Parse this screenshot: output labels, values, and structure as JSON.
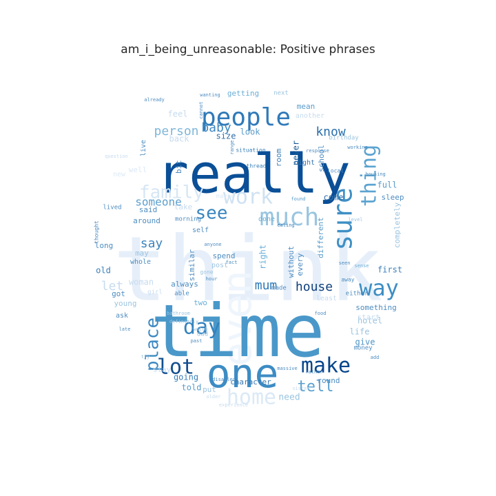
{
  "title": "am_i_being_unreasonable: Positive phrases",
  "colormap": [
    "#eef5fc",
    "#dbe9f6",
    "#c6dbef",
    "#9ecae1",
    "#6aaed6",
    "#4292c6",
    "#2171b5",
    "#08519c",
    "#08306b"
  ],
  "words": [
    {
      "text": "think",
      "shade": "#e6eff9"
    },
    {
      "text": "even",
      "shade": "#eef5fc"
    },
    {
      "text": "time",
      "shade": "#4a98c9"
    },
    {
      "text": "really",
      "shade": "#0a4f97"
    },
    {
      "text": "one",
      "shade": "#3d8cc4"
    },
    {
      "text": "people",
      "shade": "#2f7ab9"
    },
    {
      "text": "much",
      "shade": "#9ac5e0"
    },
    {
      "text": "work",
      "shade": "#cfe1f2"
    },
    {
      "text": "family",
      "shade": "#d6e6f4"
    },
    {
      "text": "see",
      "shade": "#3a86c0"
    },
    {
      "text": "sure",
      "shade": "#3f8fc5"
    },
    {
      "text": "thing",
      "shade": "#5ba3d0"
    },
    {
      "text": "way",
      "shade": "#3e8ec4"
    },
    {
      "text": "make",
      "shade": "#08468b"
    },
    {
      "text": "lot",
      "shade": "#124f8e"
    },
    {
      "text": "day",
      "shade": "#3282be"
    },
    {
      "text": "home",
      "shade": "#dbe9f6"
    },
    {
      "text": "place",
      "shade": "#3d89c2"
    },
    {
      "text": "tell",
      "shade": "#5aa1cf"
    },
    {
      "text": "house",
      "shade": "#0e3f7c"
    },
    {
      "text": "mum",
      "shade": "#2f79b5"
    },
    {
      "text": "know",
      "shade": "#2a6fac"
    },
    {
      "text": "person",
      "shade": "#7fb6d9"
    },
    {
      "text": "baby",
      "shade": "#3d87c0"
    },
    {
      "text": "someone",
      "shade": "#5c9fcd"
    },
    {
      "text": "say",
      "shade": "#3b84be"
    },
    {
      "text": "let",
      "shade": "#c6dbef"
    },
    {
      "text": "need",
      "shade": "#9ac5e0"
    },
    {
      "text": "going",
      "shade": "#3a7fb8"
    },
    {
      "text": "told",
      "shade": "#5a9bc9"
    },
    {
      "text": "character",
      "shade": "#3a77b0"
    },
    {
      "text": "round",
      "shade": "#4f8cc1"
    },
    {
      "text": "give",
      "shade": "#4d92c5"
    },
    {
      "text": "life",
      "shade": "#9cc4e0"
    },
    {
      "text": "hotel",
      "shade": "#9cc4e0"
    },
    {
      "text": "start",
      "shade": "#c6dbef"
    },
    {
      "text": "something",
      "shade": "#4d8cc1"
    },
    {
      "text": "least",
      "shade": "#c6dbef"
    },
    {
      "text": "first",
      "shade": "#3a7fb8"
    },
    {
      "text": "every",
      "shade": "#4d8cc1"
    },
    {
      "text": "without",
      "shade": "#4d8cc1"
    },
    {
      "text": "right",
      "shade": "#6aaed6"
    },
    {
      "text": "different",
      "shade": "#5a9bc9"
    },
    {
      "text": "come",
      "shade": "#2f6ea9"
    },
    {
      "text": "full",
      "shade": "#5a9bc9"
    },
    {
      "text": "sleep",
      "shade": "#4d8cc1"
    },
    {
      "text": "completely",
      "shade": "#9cc4e0"
    },
    {
      "text": "never",
      "shade": "#1d5c98"
    },
    {
      "text": "school",
      "shade": "#4d8cc1"
    },
    {
      "text": "room",
      "shade": "#3a7fb8"
    },
    {
      "text": "night",
      "shade": "#3a77b0"
    },
    {
      "text": "size",
      "shade": "#2f6ea9"
    },
    {
      "text": "look",
      "shade": "#5a9bc9"
    },
    {
      "text": "back",
      "shade": "#c6dbef"
    },
    {
      "text": "feel",
      "shade": "#c6dbef"
    },
    {
      "text": "getting",
      "shade": "#6aaed6"
    },
    {
      "text": "mean",
      "shade": "#5a9bc9"
    },
    {
      "text": "another",
      "shade": "#c6dbef"
    },
    {
      "text": "next",
      "shade": "#9cc4e0"
    },
    {
      "text": "birthday",
      "shade": "#9cc4e0"
    },
    {
      "text": "live",
      "shade": "#4d8cc1"
    },
    {
      "text": "bit",
      "shade": "#4d8cc1"
    },
    {
      "text": "well",
      "shade": "#dbe9f6"
    },
    {
      "text": "new",
      "shade": "#dbe9f6"
    },
    {
      "text": "said",
      "shade": "#4d8cc1"
    },
    {
      "text": "around",
      "shade": "#4d8cc1"
    },
    {
      "text": "take",
      "shade": "#c6dbef"
    },
    {
      "text": "morning",
      "shade": "#4d8cc1"
    },
    {
      "text": "done",
      "shade": "#6aaed6"
    },
    {
      "text": "self",
      "shade": "#4d8cc1"
    },
    {
      "text": "maybe",
      "shade": "#dbe9f6"
    },
    {
      "text": "long",
      "shade": "#4d8cc1"
    },
    {
      "text": "old",
      "shade": "#3a7fb8"
    },
    {
      "text": "woman",
      "shade": "#c6dbef"
    },
    {
      "text": "always",
      "shade": "#4d8cc1"
    },
    {
      "text": "similar",
      "shade": "#4d8cc1"
    },
    {
      "text": "spend",
      "shade": "#4d8cc1"
    },
    {
      "text": "post",
      "shade": "#9cc4e0"
    },
    {
      "text": "whole",
      "shade": "#4d8cc1"
    },
    {
      "text": "may",
      "shade": "#9cc4e0"
    },
    {
      "text": "got",
      "shade": "#4d8cc1"
    },
    {
      "text": "young",
      "shade": "#9cc4e0"
    },
    {
      "text": "two",
      "shade": "#6aaed6"
    },
    {
      "text": "able",
      "shade": "#4d8cc1"
    },
    {
      "text": "ask",
      "shade": "#4d8cc1"
    },
    {
      "text": "stay",
      "shade": "#c6dbef"
    },
    {
      "text": "put",
      "shade": "#9cc4e0"
    },
    {
      "text": "dad",
      "shade": "#9cc4e0"
    },
    {
      "text": "lived",
      "shade": "#4d8cc1"
    },
    {
      "text": "made",
      "shade": "#4d8cc1"
    },
    {
      "text": "either",
      "shade": "#4d8cc1"
    },
    {
      "text": "away",
      "shade": "#4d8cc1"
    },
    {
      "text": "money",
      "shade": "#4d8cc1"
    },
    {
      "text": "girl",
      "shade": "#c6dbef"
    },
    {
      "text": "situation",
      "shade": "#3a7fb8"
    },
    {
      "text": "thread",
      "shade": "#3a7fb8"
    },
    {
      "text": "found",
      "shade": "#5a9bc9"
    },
    {
      "text": "thought",
      "shade": "#4d8cc1"
    },
    {
      "text": "question",
      "shade": "#c6dbef"
    },
    {
      "text": "housing",
      "shade": "#4d8cc1"
    },
    {
      "text": "working",
      "shade": "#4d8cc1"
    },
    {
      "text": "eating",
      "shade": "#3a7fb8"
    },
    {
      "text": "already",
      "shade": "#4d8cc1"
    },
    {
      "text": "seen",
      "shade": "#4d8cc1"
    },
    {
      "text": "sense",
      "shade": "#6aaed6"
    },
    {
      "text": "response",
      "shade": "#4d8cc1"
    },
    {
      "text": "local",
      "shade": "#4d8cc1"
    },
    {
      "text": "level",
      "shade": "#9cc4e0"
    },
    {
      "text": "range",
      "shade": "#4d8cc1"
    },
    {
      "text": "anyone",
      "shade": "#4d8cc1"
    },
    {
      "text": "bathroom",
      "shade": "#9cc4e0"
    },
    {
      "text": "definitely",
      "shade": "#9cc4e0"
    },
    {
      "text": "watch",
      "shade": "#9cc4e0"
    },
    {
      "text": "past",
      "shade": "#4d8cc1"
    },
    {
      "text": "disabled",
      "shade": "#4d8cc1"
    },
    {
      "text": "massive",
      "shade": "#4d8cc1"
    },
    {
      "text": "rather",
      "shade": "#4d8cc1"
    },
    {
      "text": "food",
      "shade": "#4d8cc1"
    },
    {
      "text": "hour",
      "shade": "#4d8cc1"
    },
    {
      "text": "fact",
      "shade": "#4d8cc1"
    },
    {
      "text": "wanting",
      "shade": "#4d8cc1"
    },
    {
      "text": "cannot",
      "shade": "#4d8cc1"
    },
    {
      "text": "experience",
      "shade": "#c6dbef"
    },
    {
      "text": "older",
      "shade": "#c6dbef"
    },
    {
      "text": "add",
      "shade": "#4d8cc1"
    },
    {
      "text": "late",
      "shade": "#4d8cc1"
    },
    {
      "text": "try",
      "shade": "#9cc4e0"
    },
    {
      "text": "sister",
      "shade": "#c6dbef"
    },
    {
      "text": "gone",
      "shade": "#9cc4e0"
    }
  ]
}
